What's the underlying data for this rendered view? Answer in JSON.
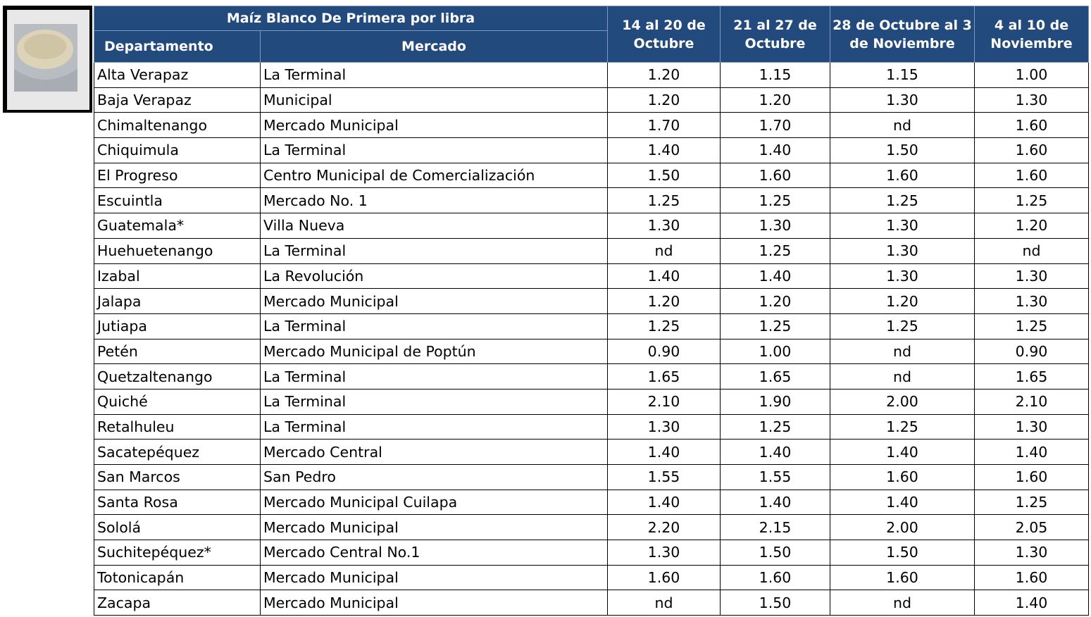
{
  "table": {
    "title": "Maíz Blanco De Primera por libra",
    "headers": [
      "Departamento",
      "Mercado"
    ],
    "weeks": [
      "14 al 20 de Octubre",
      "21 al 27 de Octubre",
      "28 de Octubre al 3 de Noviembre",
      "4 al 10 de Noviembre"
    ],
    "rows": [
      [
        "Alta Verapaz",
        "La Terminal",
        "1.20",
        "1.15",
        "1.15",
        "1.00"
      ],
      [
        "Baja Verapaz",
        "Municipal",
        "1.20",
        "1.20",
        "1.30",
        "1.30"
      ],
      [
        "Chimaltenango",
        "Mercado Municipal",
        "1.70",
        "1.70",
        "nd",
        "1.60"
      ],
      [
        "Chiquimula",
        "La Terminal",
        "1.40",
        "1.40",
        "1.50",
        "1.60"
      ],
      [
        "El Progreso",
        "Centro Municipal de Comercialización",
        "1.50",
        "1.60",
        "1.60",
        "1.60"
      ],
      [
        "Escuintla",
        "Mercado No. 1",
        "1.25",
        "1.25",
        "1.25",
        "1.25"
      ],
      [
        "Guatemala*",
        "Villa Nueva",
        "1.30",
        "1.30",
        "1.30",
        "1.20"
      ],
      [
        "Huehuetenango",
        "La Terminal",
        "nd",
        "1.25",
        "1.30",
        "nd"
      ],
      [
        "Izabal",
        "La Revolución",
        "1.40",
        "1.40",
        "1.30",
        "1.30"
      ],
      [
        "Jalapa",
        "Mercado Municipal",
        "1.20",
        "1.20",
        "1.20",
        "1.30"
      ],
      [
        "Jutiapa",
        "La Terminal",
        "1.25",
        "1.25",
        "1.25",
        "1.25"
      ],
      [
        "Petén",
        "Mercado Municipal de Poptún",
        "0.90",
        "1.00",
        "nd",
        "0.90"
      ],
      [
        "Quetzaltenango",
        "La Terminal",
        "1.65",
        "1.65",
        "nd",
        "1.65"
      ],
      [
        "Quiché",
        "La Terminal",
        "2.10",
        "1.90",
        "2.00",
        "2.10"
      ],
      [
        "Retalhuleu",
        "La Terminal",
        "1.30",
        "1.25",
        "1.25",
        "1.30"
      ],
      [
        "Sacatepéquez",
        "Mercado Central",
        "1.40",
        "1.40",
        "1.40",
        "1.40"
      ],
      [
        "San Marcos",
        "San Pedro",
        "1.55",
        "1.55",
        "1.60",
        "1.60"
      ],
      [
        "Santa Rosa",
        "Mercado Municipal Cuilapa",
        "1.40",
        "1.40",
        "1.40",
        "1.25"
      ],
      [
        "Sololá",
        "Mercado Municipal",
        "2.20",
        "2.15",
        "2.00",
        "2.05"
      ],
      [
        "Suchitepéquez*",
        "Mercado Central No.1",
        "1.30",
        "1.50",
        "1.50",
        "1.30"
      ],
      [
        "Totonicapán",
        "Mercado Municipal",
        "1.60",
        "1.60",
        "1.60",
        "1.60"
      ],
      [
        "Zacapa",
        "Mercado Municipal",
        "nd",
        "1.50",
        "nd",
        "1.40"
      ]
    ]
  }
}
